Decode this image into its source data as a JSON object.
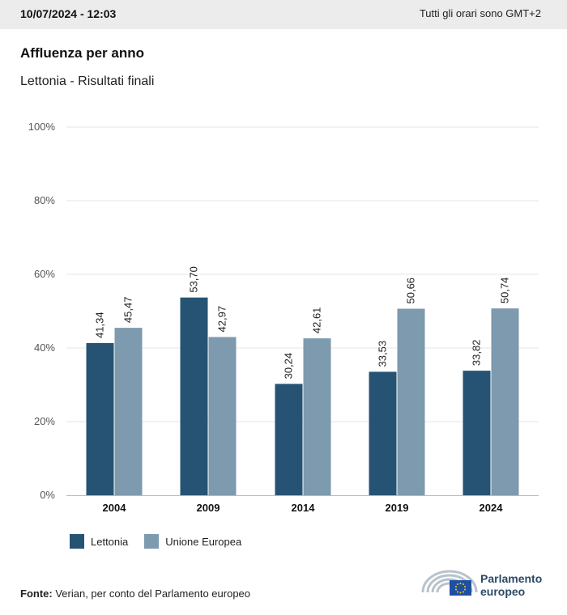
{
  "header": {
    "datetime": "10/07/2024 - 12:03",
    "timezone": "Tutti gli orari sono GMT+2"
  },
  "title": "Affluenza per anno",
  "subtitle": "Lettonia - Risultati finali",
  "chart_data": {
    "type": "bar",
    "categories": [
      "2004",
      "2009",
      "2014",
      "2019",
      "2024"
    ],
    "series": [
      {
        "name": "Lettonia",
        "values": [
          41.34,
          53.7,
          30.24,
          33.53,
          33.82
        ],
        "labels": [
          "41,34",
          "53,70",
          "30,24",
          "33,53",
          "33,82"
        ],
        "color": "#265373"
      },
      {
        "name": "Unione Europea",
        "values": [
          45.47,
          42.97,
          42.61,
          50.66,
          50.74
        ],
        "labels": [
          "45,47",
          "42,97",
          "42,61",
          "50,66",
          "50,74"
        ],
        "color": "#7d9aae"
      }
    ],
    "ylim": [
      0,
      100
    ],
    "yticks": [
      0,
      20,
      40,
      60,
      80,
      100
    ],
    "ytick_labels": [
      "0%",
      "20%",
      "40%",
      "60%",
      "80%",
      "100%"
    ],
    "grid": true,
    "legend": "bottom-left"
  },
  "source": {
    "label": "Fonte:",
    "text": "Verian, per conto del Parlamento europeo"
  },
  "logo": {
    "line1": "Parlamento",
    "line2": "europeo"
  }
}
